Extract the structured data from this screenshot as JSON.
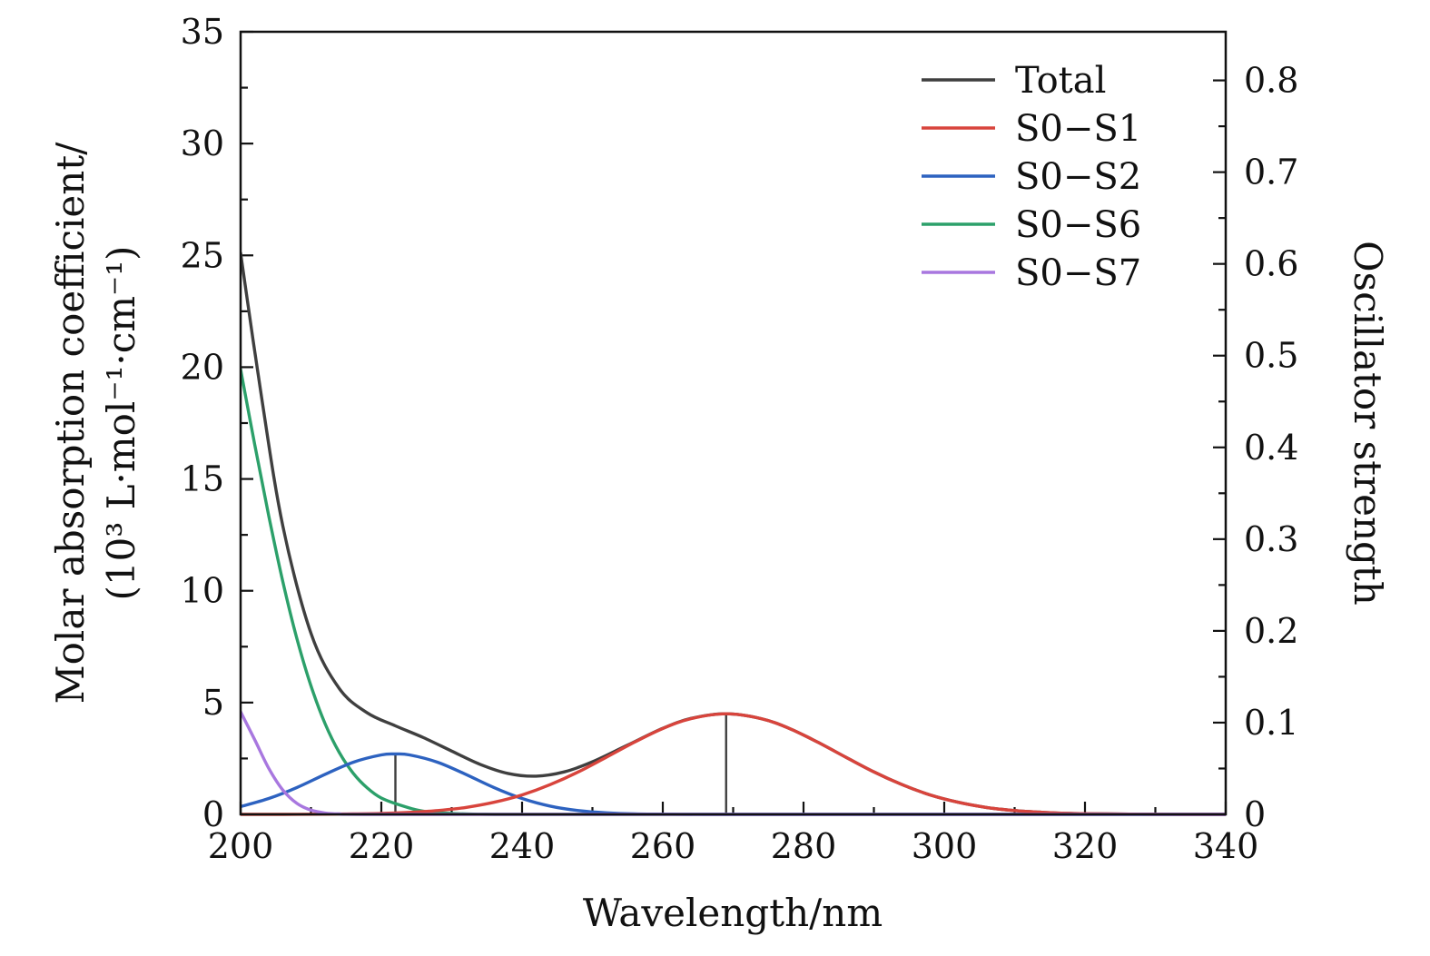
{
  "figure": {
    "xlabel": "Wavelength/nm",
    "ylabel_left_line1": "Molar absorption coefficient/",
    "ylabel_left_line2": "(10³ L·mol⁻¹·cm⁻¹)",
    "ylabel_right": "Oscillator strength"
  },
  "chart_data": {
    "type": "line",
    "title": "",
    "xlabel": "Wavelength/nm",
    "ylabel": "Molar absorption coefficient/ (10³ L·mol⁻¹·cm⁻¹)",
    "ylabel_right": "Oscillator strength",
    "x_range": [
      200,
      340
    ],
    "y_left_range": [
      0,
      35
    ],
    "y_right_range": [
      0,
      0.853
    ],
    "grid": false,
    "frame_color": "#111111",
    "x_ticks": {
      "values": [
        200,
        220,
        240,
        260,
        280,
        300,
        320,
        340
      ],
      "labels": [
        "200",
        "220",
        "240",
        "260",
        "280",
        "300",
        "320",
        "340"
      ],
      "minor": [
        210,
        230,
        250,
        270,
        290,
        310,
        330
      ]
    },
    "y_left_ticks": {
      "values": [
        0,
        5,
        10,
        15,
        20,
        25,
        30,
        35
      ],
      "labels": [
        "0",
        "5",
        "10",
        "15",
        "20",
        "25",
        "30",
        "35"
      ],
      "minor": [
        2.5,
        7.5,
        12.5,
        17.5,
        22.5,
        27.5,
        32.5
      ]
    },
    "y_right_ticks": {
      "values": [
        0,
        0.1,
        0.2,
        0.3,
        0.4,
        0.5,
        0.6,
        0.7,
        0.8
      ],
      "labels": [
        "0",
        "0.1",
        "0.2",
        "0.3",
        "0.4",
        "0.5",
        "0.6",
        "0.7",
        "0.8"
      ],
      "minor": [
        0.05,
        0.15,
        0.25,
        0.35,
        0.45,
        0.55,
        0.65,
        0.75
      ]
    },
    "legend": {
      "position": "top-right",
      "order": [
        "Total",
        "S0−S1",
        "S0−S2",
        "S0−S6",
        "S0−S7"
      ]
    },
    "draw_order": [
      "Total",
      "S0−S6",
      "S0−S2",
      "S0−S1",
      "S0−S7"
    ],
    "series": [
      {
        "name": "Total",
        "color": "#3f3f3f",
        "points": [
          [
            200,
            25.1
          ],
          [
            203,
            18.6
          ],
          [
            206,
            12.9
          ],
          [
            210,
            8.1
          ],
          [
            214,
            5.64
          ],
          [
            218,
            4.54
          ],
          [
            222,
            3.96
          ],
          [
            226,
            3.43
          ],
          [
            230,
            2.83
          ],
          [
            234,
            2.24
          ],
          [
            238,
            1.83
          ],
          [
            242,
            1.71
          ],
          [
            246,
            1.9
          ],
          [
            250,
            2.35
          ],
          [
            255,
            3.1
          ],
          [
            260,
            3.85
          ],
          [
            264,
            4.29
          ],
          [
            269,
            4.5
          ],
          [
            274,
            4.28
          ],
          [
            278,
            3.84
          ],
          [
            282,
            3.23
          ],
          [
            286,
            2.56
          ],
          [
            290,
            1.9
          ],
          [
            294,
            1.33
          ],
          [
            298,
            0.87
          ],
          [
            302,
            0.54
          ],
          [
            306,
            0.31
          ],
          [
            310,
            0.17
          ],
          [
            314,
            0.09
          ],
          [
            318,
            0.04
          ],
          [
            323,
            0.02
          ],
          [
            328,
            0.01
          ],
          [
            334,
            0
          ],
          [
            340,
            0
          ]
        ]
      },
      {
        "name": "S0−S1",
        "color": "#d8443c",
        "points": [
          [
            200,
            0
          ],
          [
            206,
            0
          ],
          [
            212,
            0.01
          ],
          [
            216,
            0.02
          ],
          [
            220,
            0.04
          ],
          [
            224,
            0.09
          ],
          [
            228,
            0.17
          ],
          [
            232,
            0.31
          ],
          [
            236,
            0.54
          ],
          [
            240,
            0.87
          ],
          [
            244,
            1.33
          ],
          [
            248,
            1.9
          ],
          [
            252,
            2.56
          ],
          [
            256,
            3.23
          ],
          [
            260,
            3.84
          ],
          [
            264,
            4.28
          ],
          [
            269,
            4.5
          ],
          [
            274,
            4.28
          ],
          [
            278,
            3.84
          ],
          [
            282,
            3.23
          ],
          [
            286,
            2.56
          ],
          [
            290,
            1.9
          ],
          [
            294,
            1.33
          ],
          [
            298,
            0.87
          ],
          [
            302,
            0.54
          ],
          [
            306,
            0.31
          ],
          [
            310,
            0.17
          ],
          [
            314,
            0.09
          ],
          [
            318,
            0.04
          ],
          [
            323,
            0.02
          ],
          [
            328,
            0.01
          ],
          [
            334,
            0
          ],
          [
            340,
            0
          ]
        ]
      },
      {
        "name": "S0−S2",
        "color": "#2d62c0",
        "points": [
          [
            200,
            0.35
          ],
          [
            204,
            0.71
          ],
          [
            208,
            1.2
          ],
          [
            212,
            1.79
          ],
          [
            216,
            2.33
          ],
          [
            220,
            2.66
          ],
          [
            222,
            2.7
          ],
          [
            224,
            2.66
          ],
          [
            228,
            2.33
          ],
          [
            232,
            1.79
          ],
          [
            236,
            1.2
          ],
          [
            240,
            0.71
          ],
          [
            244,
            0.37
          ],
          [
            248,
            0.17
          ],
          [
            252,
            0.07
          ],
          [
            256,
            0.02
          ],
          [
            260,
            0.01
          ],
          [
            266,
            0
          ],
          [
            290,
            0
          ],
          [
            315,
            0
          ],
          [
            340,
            0
          ]
        ]
      },
      {
        "name": "S0−S6",
        "color": "#2ca06a",
        "points": [
          [
            200,
            19.9
          ],
          [
            202,
            16.55
          ],
          [
            204,
            13.35
          ],
          [
            206,
            10.41
          ],
          [
            208,
            7.86
          ],
          [
            210,
            5.75
          ],
          [
            212,
            4.06
          ],
          [
            214,
            2.78
          ],
          [
            216,
            1.84
          ],
          [
            218,
            1.18
          ],
          [
            220,
            0.73
          ],
          [
            223,
            0.38
          ],
          [
            226,
            0.14
          ],
          [
            230,
            0.04
          ],
          [
            234,
            0.01
          ],
          [
            240,
            0
          ],
          [
            270,
            0
          ],
          [
            305,
            0
          ],
          [
            340,
            0
          ]
        ]
      },
      {
        "name": "S0−S7",
        "color": "#a877df",
        "points": [
          [
            200,
            4.59
          ],
          [
            202,
            3.34
          ],
          [
            204,
            2.06
          ],
          [
            206,
            1.09
          ],
          [
            208,
            0.49
          ],
          [
            210,
            0.19
          ],
          [
            212,
            0.06
          ],
          [
            214,
            0.02
          ],
          [
            218,
            0
          ],
          [
            250,
            0
          ],
          [
            290,
            0
          ],
          [
            340,
            0
          ]
        ]
      }
    ],
    "sticks": [
      {
        "x": 222,
        "top_left_axis": 2.7,
        "oscillator_strength": 0.066,
        "color": "#3f3f3f"
      },
      {
        "x": 269,
        "top_left_axis": 4.5,
        "oscillator_strength": 0.11,
        "color": "#3f3f3f"
      }
    ]
  }
}
